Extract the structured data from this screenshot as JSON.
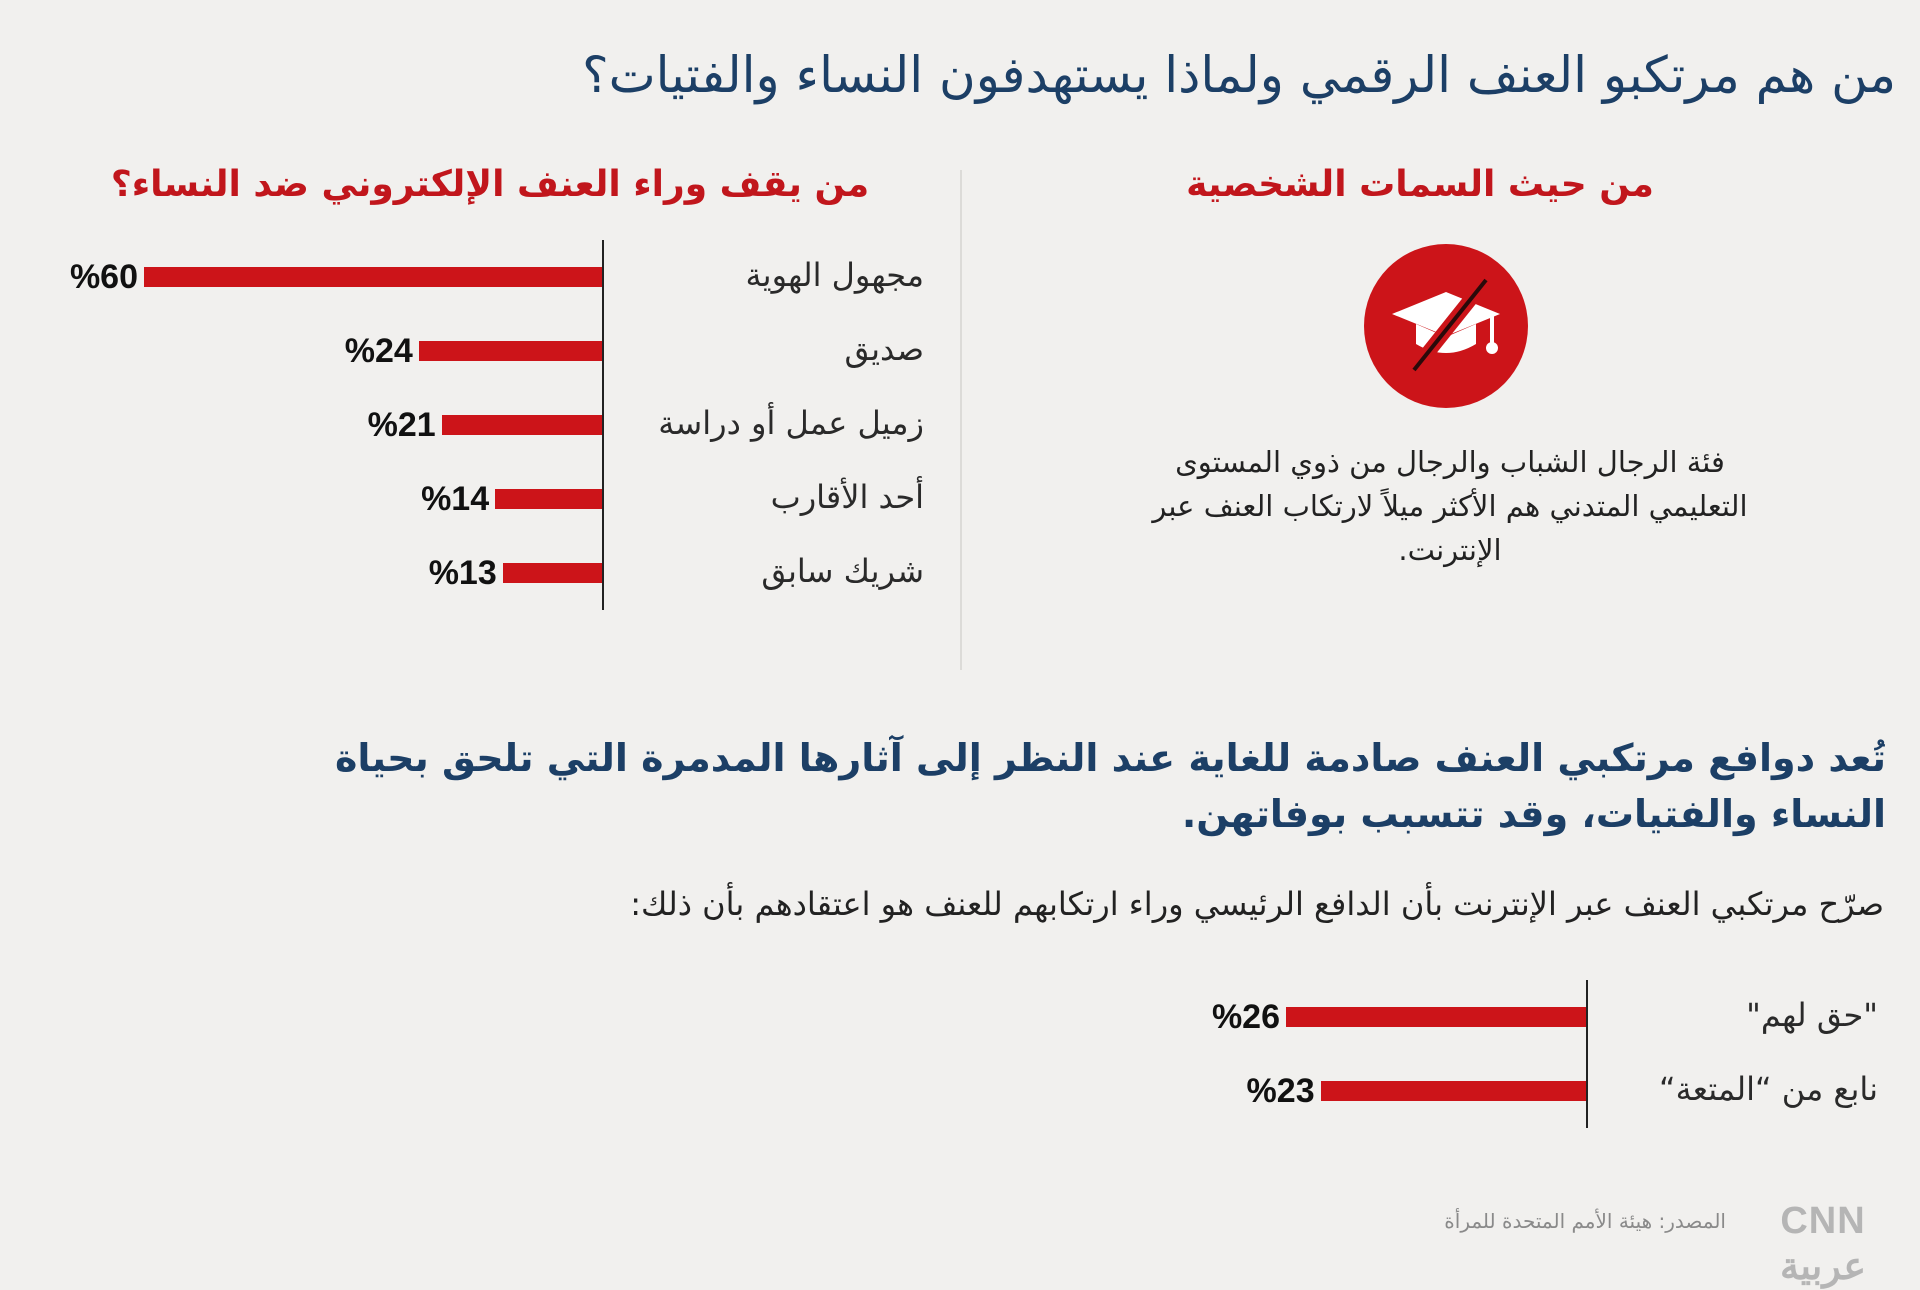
{
  "title": "من هم مرتكبو العنف الرقمي ولماذا يستهدفون النساء والفتيات؟",
  "traits": {
    "heading": "من حيث السمات الشخصية",
    "icon": "graduation-cap-crossed-icon",
    "text": "فئة الرجال الشباب والرجال من ذوي المستوى التعليمي المتدني هم الأكثر ميلاً لارتكاب العنف عبر الإنترنت."
  },
  "perpetrators_heading": "من يقف وراء العنف الإلكتروني ضد النساء؟",
  "conclusion": "تُعد دوافع مرتكبي العنف صادمة للغاية عند النظر إلى آثارها المدمرة التي تلحق بحياة النساء والفتيات، وقد تتسبب بوفاتهن.",
  "motives_intro": "صرّح مرتكبي العنف عبر الإنترنت بأن الدافع الرئيسي وراء ارتكابهم للعنف هو اعتقادهم بأن ذلك:",
  "source": "المصدر: هيئة الأمم المتحدة للمرأة",
  "logo": "CNN العربية",
  "colors": {
    "bar": "#cc1419",
    "title": "#1c3f66",
    "heading": "#c1161c"
  },
  "chart_data": [
    {
      "type": "bar",
      "orientation": "horizontal",
      "title": "من يقف وراء العنف الإلكتروني ضد النساء؟",
      "categories": [
        "مجهول الهوية",
        "صديق",
        "زميل عمل أو دراسة",
        "أحد الأقارب",
        "شريك سابق"
      ],
      "values": [
        60,
        24,
        21,
        14,
        13
      ],
      "value_labels": [
        "%60",
        "%24",
        "%21",
        "%14",
        "%13"
      ],
      "unit": "%",
      "xlim": [
        0,
        60
      ]
    },
    {
      "type": "bar",
      "orientation": "horizontal",
      "title": "صرّح مرتكبي العنف عبر الإنترنت بأن الدافع الرئيسي وراء ارتكابهم للعنف هو اعتقادهم بأن ذلك:",
      "categories": [
        "\"حق لهم\"",
        "نابع من “المتعة“"
      ],
      "values": [
        26,
        23
      ],
      "value_labels": [
        "%26",
        "%23"
      ],
      "unit": "%",
      "xlim": [
        0,
        26
      ]
    }
  ]
}
